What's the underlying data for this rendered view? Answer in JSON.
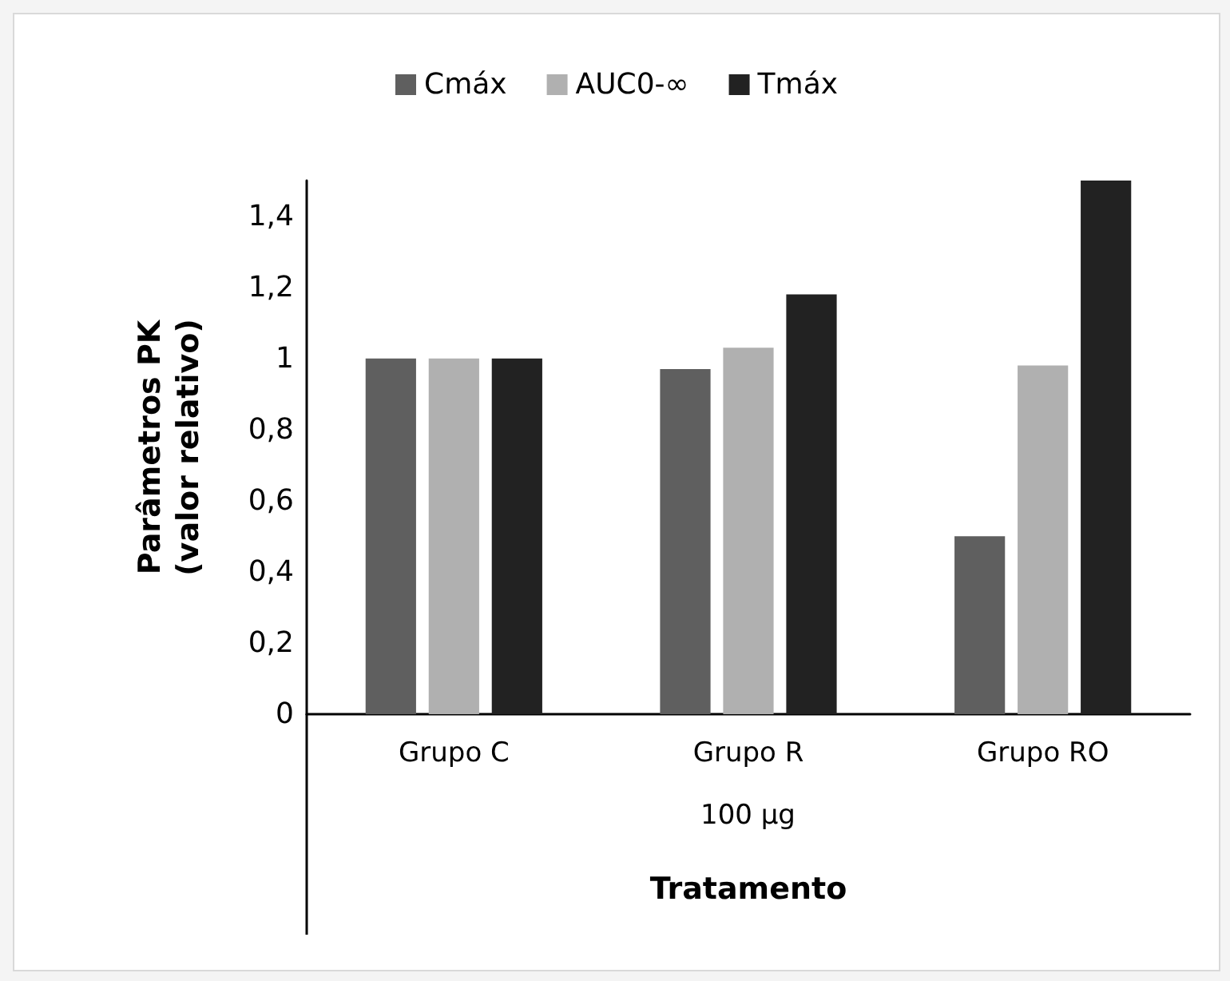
{
  "chart_data": {
    "type": "bar",
    "categories": [
      "Grupo C",
      "Grupo R",
      "Grupo RO"
    ],
    "series": [
      {
        "name": "Cmáx",
        "color": "#5f5f5f",
        "values": [
          1,
          0.97,
          0.5
        ]
      },
      {
        "name": "AUC0-∞",
        "color": "#b0b0b0",
        "values": [
          1,
          1.03,
          0.98
        ]
      },
      {
        "name": "Tmáx",
        "color": "#222222",
        "values": [
          1,
          1.18,
          1.5
        ]
      }
    ],
    "ylim": [
      0,
      1.5
    ],
    "yticks": [
      {
        "value": 0,
        "label": "0"
      },
      {
        "value": 0.2,
        "label": "0,2"
      },
      {
        "value": 0.4,
        "label": "0,4"
      },
      {
        "value": 0.6,
        "label": "0,6"
      },
      {
        "value": 0.8,
        "label": "0,8"
      },
      {
        "value": 1,
        "label": "1"
      },
      {
        "value": 1.2,
        "label": "1,2"
      },
      {
        "value": 1.4,
        "label": "1,4"
      }
    ],
    "ylabel": "Parâmetros PK\n(valor relativo)",
    "xlabel": "Tratamento",
    "annotations": [
      "100 µg"
    ],
    "grid": false,
    "legend": "top"
  }
}
